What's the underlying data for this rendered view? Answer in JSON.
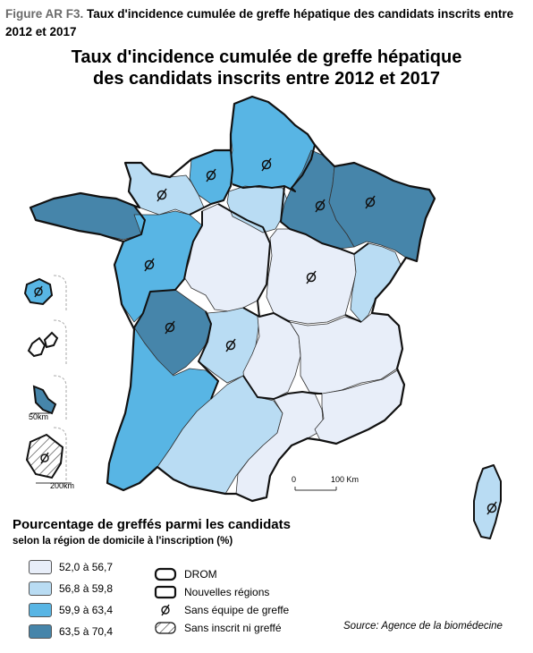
{
  "figure": {
    "label": "Figure AR F3.",
    "caption": "Taux d'incidence cumulée de greffe hépatique des candidats inscrits entre 2012 et 2017"
  },
  "map_title": {
    "line1": "Taux d'incidence cumulée de greffe hépatique",
    "line2": "des candidats inscrits entre 2012 et 2017"
  },
  "legend": {
    "title": "Pourcentage de greffés parmi les candidats",
    "subtitle": "selon la région de domicile à l'inscription (%)",
    "classes": [
      {
        "label": "52,0 à 56,7",
        "color": "#e8eef9"
      },
      {
        "label": "56,8 à 59,8",
        "color": "#b9dcf3"
      },
      {
        "label": "59,9 à 63,4",
        "color": "#58b5e4"
      },
      {
        "label": "63,5 à 70,4",
        "color": "#4685aa"
      }
    ],
    "symbols": [
      {
        "label": "DROM"
      },
      {
        "label": "Nouvelles régions"
      },
      {
        "label": "Sans équipe de greffe"
      },
      {
        "label": "Sans inscrit ni greffé"
      }
    ]
  },
  "scalebar": {
    "start": "0",
    "end": "100 Km"
  },
  "inset_scales": {
    "small": "50km",
    "large": "200km"
  },
  "source": "Source: Agence de la biomédecine"
}
